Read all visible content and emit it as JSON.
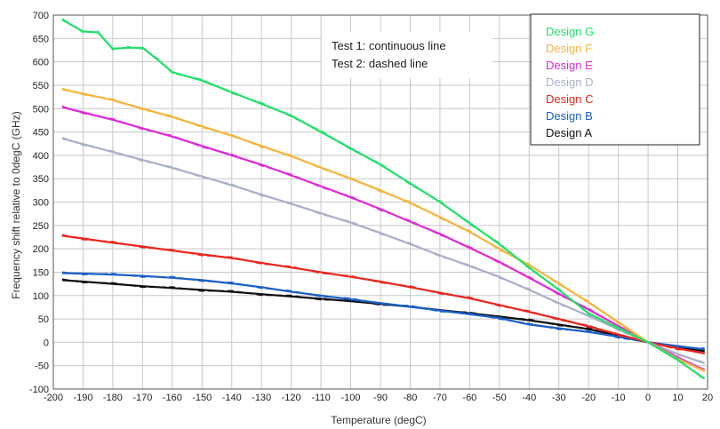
{
  "chart_data": {
    "type": "line",
    "xlabel": "Temperature (degC)",
    "ylabel": "Frequency shift relative to 0degC (GHz)",
    "xlim": [
      -200,
      20
    ],
    "ylim": [
      -100,
      700
    ],
    "x_ticks": [
      -200,
      -190,
      -180,
      -170,
      -160,
      -150,
      -140,
      -130,
      -120,
      -110,
      -100,
      -90,
      -80,
      -70,
      -60,
      -50,
      -40,
      -30,
      -20,
      -10,
      0,
      10,
      20
    ],
    "y_ticks": [
      -100,
      -50,
      0,
      50,
      100,
      150,
      200,
      250,
      300,
      350,
      400,
      450,
      500,
      550,
      600,
      650,
      700
    ],
    "grid": true,
    "legend_position": "top-right",
    "annotations": [
      "Test 1: continuous line",
      "Test 2: dashed line"
    ],
    "series": [
      {
        "name": "Design G",
        "color": "#22e06a",
        "x": [
          -197,
          -190,
          -185,
          -180,
          -175,
          -170,
          -165,
          -160,
          -150,
          -140,
          -130,
          -120,
          -110,
          -100,
          -90,
          -80,
          -70,
          -60,
          -50,
          -40,
          -30,
          -20,
          -10,
          0,
          10,
          19
        ],
        "y": [
          690,
          665,
          663,
          628,
          630,
          630,
          605,
          578,
          560,
          535,
          510,
          485,
          450,
          415,
          380,
          340,
          300,
          255,
          210,
          160,
          112,
          62,
          30,
          0,
          -38,
          -78
        ]
      },
      {
        "name": "Design F",
        "color": "#f7b43a",
        "x": [
          -197,
          -190,
          -180,
          -170,
          -160,
          -150,
          -140,
          -130,
          -120,
          -110,
          -100,
          -90,
          -80,
          -70,
          -60,
          -50,
          -40,
          -30,
          -20,
          -10,
          0,
          10,
          19
        ],
        "y": [
          541,
          532,
          518,
          500,
          482,
          462,
          442,
          420,
          398,
          374,
          350,
          325,
          298,
          268,
          236,
          200,
          165,
          126,
          85,
          43,
          0,
          -35,
          -62
        ]
      },
      {
        "name": "Design E",
        "color": "#e02ad8",
        "x": [
          -197,
          -190,
          -180,
          -170,
          -160,
          -150,
          -140,
          -130,
          -120,
          -110,
          -100,
          -90,
          -80,
          -70,
          -60,
          -50,
          -40,
          -30,
          -20,
          -10,
          0,
          10,
          19
        ],
        "y": [
          503,
          492,
          476,
          458,
          440,
          420,
          400,
          380,
          357,
          334,
          310,
          285,
          258,
          232,
          202,
          172,
          138,
          104,
          70,
          35,
          0,
          -32,
          -60
        ]
      },
      {
        "name": "Design D",
        "color": "#aab0c8",
        "x": [
          -197,
          -190,
          -180,
          -170,
          -160,
          -150,
          -140,
          -130,
          -120,
          -110,
          -100,
          -90,
          -80,
          -70,
          -60,
          -50,
          -40,
          -30,
          -20,
          -10,
          0,
          10,
          19
        ],
        "y": [
          436,
          424,
          407,
          390,
          373,
          355,
          336,
          316,
          296,
          276,
          256,
          234,
          210,
          186,
          163,
          140,
          112,
          84,
          56,
          28,
          0,
          -25,
          -45
        ]
      },
      {
        "name": "Design C",
        "color": "#e8261e",
        "x": [
          -197,
          -190,
          -180,
          -170,
          -160,
          -150,
          -140,
          -130,
          -120,
          -110,
          -100,
          -90,
          -80,
          -70,
          -60,
          -50,
          -40,
          -30,
          -20,
          -10,
          0,
          10,
          19
        ],
        "y": [
          228,
          222,
          213,
          205,
          196,
          188,
          180,
          170,
          160,
          150,
          140,
          130,
          118,
          106,
          94,
          80,
          65,
          50,
          34,
          17,
          0,
          -13,
          -24
        ]
      },
      {
        "name": "Design B",
        "color": "#1c5fc8",
        "x": [
          -197,
          -190,
          -180,
          -170,
          -160,
          -150,
          -140,
          -130,
          -120,
          -110,
          -100,
          -90,
          -80,
          -70,
          -60,
          -50,
          -40,
          -30,
          -20,
          -10,
          0,
          10,
          19
        ],
        "y": [
          148,
          147,
          145,
          142,
          138,
          133,
          126,
          118,
          108,
          100,
          92,
          84,
          76,
          68,
          60,
          52,
          38,
          30,
          22,
          12,
          0,
          -8,
          -15
        ]
      },
      {
        "name": "Design A",
        "color": "#111111",
        "x": [
          -197,
          -190,
          -180,
          -170,
          -160,
          -150,
          -140,
          -130,
          -120,
          -110,
          -100,
          -90,
          -80,
          -70,
          -60,
          -50,
          -40,
          -30,
          -20,
          -10,
          0,
          10,
          19
        ],
        "y": [
          133,
          130,
          125,
          120,
          116,
          112,
          108,
          103,
          98,
          93,
          88,
          82,
          76,
          69,
          62,
          55,
          47,
          38,
          28,
          14,
          0,
          -10,
          -19
        ]
      }
    ]
  }
}
